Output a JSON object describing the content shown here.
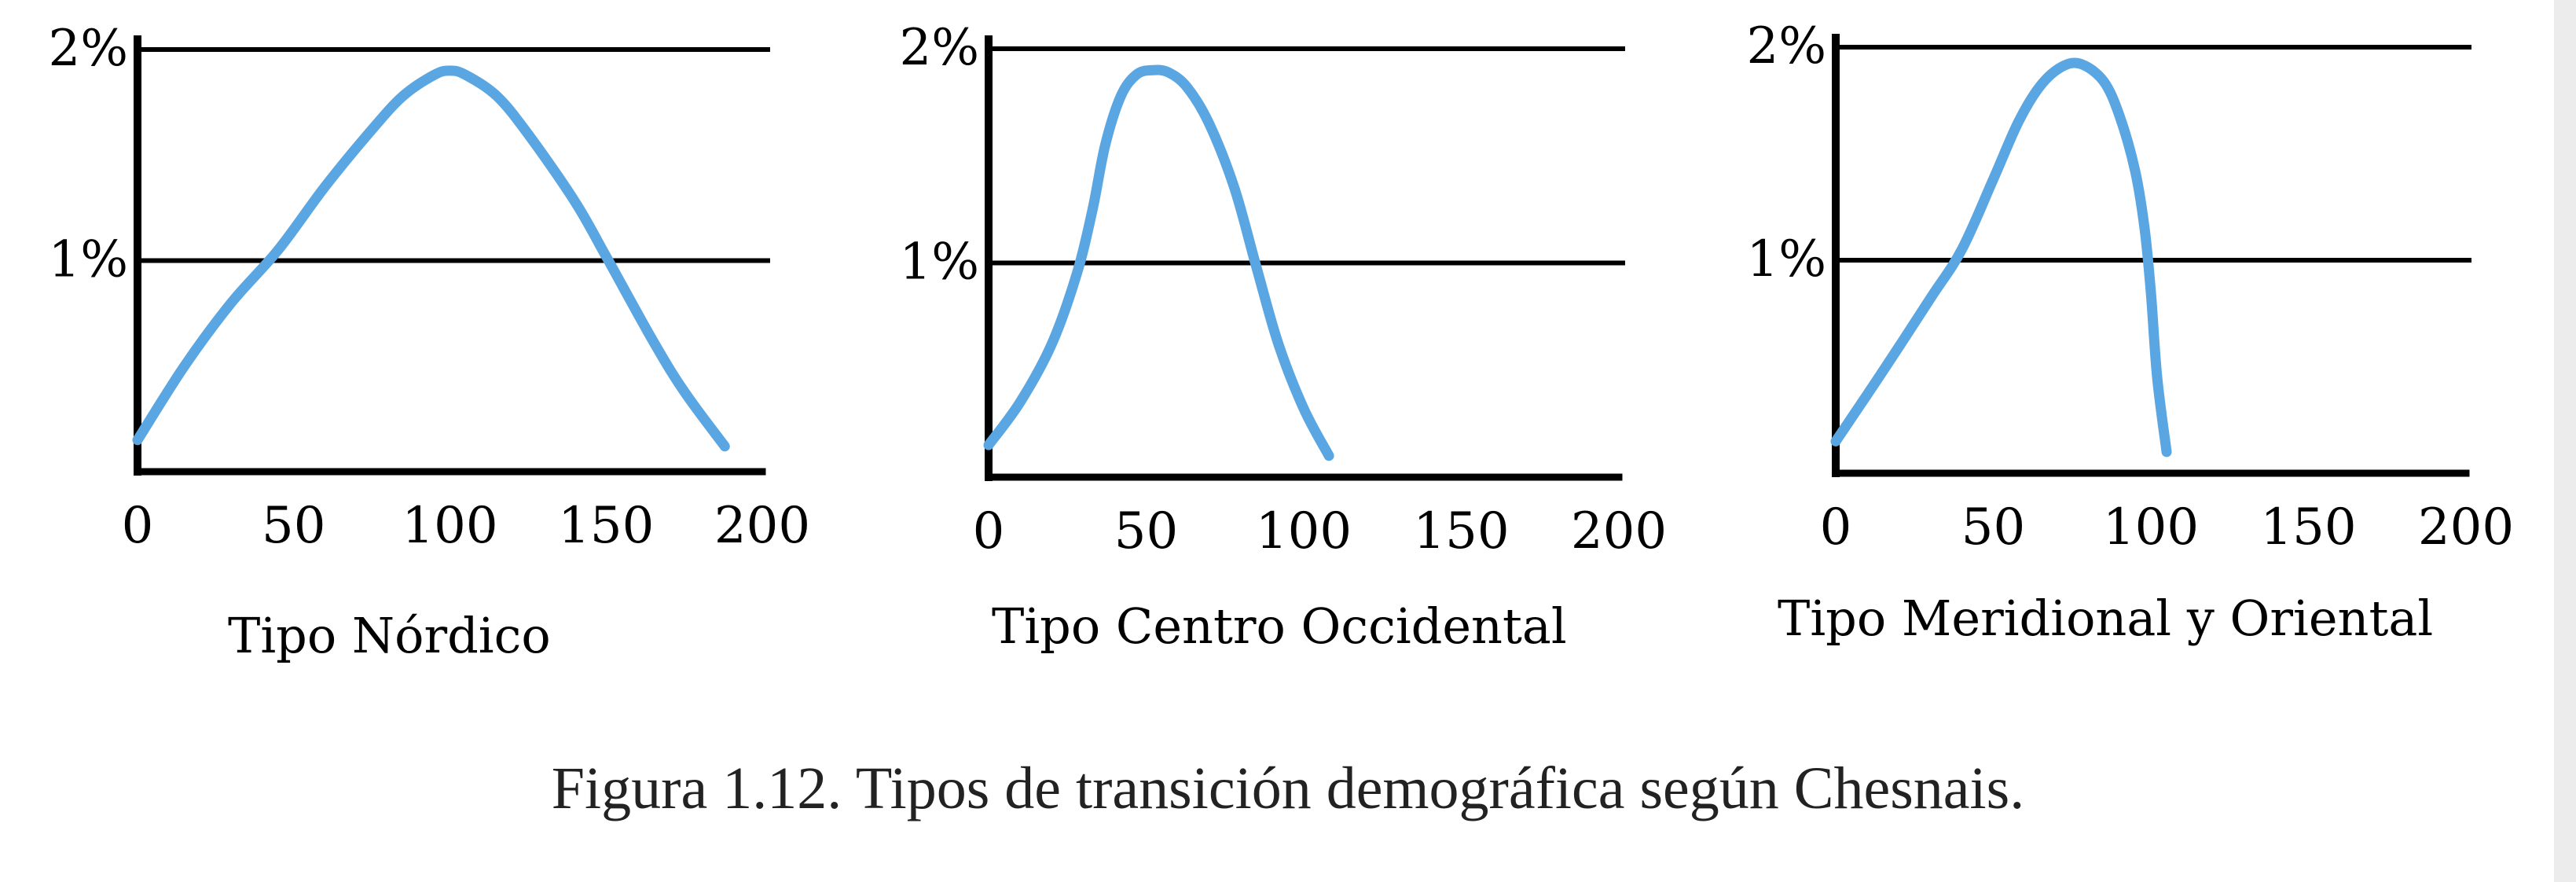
{
  "caption": "Figura 1.12.  Tipos de transición demográfica según Chesnais.",
  "colors": {
    "curve": "#5aa6e2",
    "axis": "#000000"
  },
  "chart_data": [
    {
      "type": "line",
      "title": "Tipo Nórdico",
      "xlim": [
        0,
        200
      ],
      "ylim": [
        0,
        2.5
      ],
      "xticks": [
        0,
        50,
        100,
        150,
        200
      ],
      "xtick_labels": [
        "0",
        "50",
        "100",
        "150",
        "200"
      ],
      "yticks": [
        1,
        2
      ],
      "ytick_labels": [
        "1%",
        "2%"
      ],
      "gridlines_y": [
        1,
        2
      ],
      "series": [
        {
          "x": [
            0,
            15,
            30,
            45,
            60,
            75,
            85,
            95,
            100,
            105,
            115,
            125,
            140,
            150,
            165,
            175,
            188
          ],
          "y": [
            0.15,
            0.5,
            0.8,
            1.05,
            1.35,
            1.62,
            1.78,
            1.88,
            1.9,
            1.88,
            1.78,
            1.6,
            1.28,
            1.02,
            0.62,
            0.38,
            0.12
          ]
        }
      ]
    },
    {
      "type": "line",
      "title": "Tipo Centro Occidental",
      "xlim": [
        0,
        200
      ],
      "ylim": [
        0,
        2.5
      ],
      "xticks": [
        0,
        50,
        100,
        150,
        200
      ],
      "xtick_labels": [
        "0",
        "50",
        "100",
        "150",
        "200"
      ],
      "yticks": [
        1,
        2
      ],
      "ytick_labels": [
        "1%",
        "2%"
      ],
      "gridlines_y": [
        1,
        2
      ],
      "series": [
        {
          "x": [
            0,
            10,
            20,
            28,
            33,
            37,
            42,
            47,
            52,
            57,
            63,
            70,
            78,
            85,
            92,
            100,
            108
          ],
          "y": [
            0.15,
            0.35,
            0.62,
            0.95,
            1.25,
            1.55,
            1.78,
            1.88,
            1.9,
            1.89,
            1.82,
            1.65,
            1.35,
            0.98,
            0.62,
            0.32,
            0.1
          ]
        }
      ]
    },
    {
      "type": "line",
      "title": "Tipo Meridional y Oriental",
      "xlim": [
        0,
        200
      ],
      "ylim": [
        0,
        2.5
      ],
      "xticks": [
        0,
        50,
        100,
        150,
        200
      ],
      "xtick_labels": [
        "0",
        "50",
        "100",
        "150",
        "200"
      ],
      "yticks": [
        1,
        2
      ],
      "ytick_labels": [
        "1%",
        "2%"
      ],
      "gridlines_y": [
        1,
        2
      ],
      "series": [
        {
          "x": [
            0,
            15,
            30,
            40,
            50,
            58,
            65,
            72,
            78,
            85,
            90,
            95,
            98,
            100,
            102,
            105
          ],
          "y": [
            0.15,
            0.48,
            0.82,
            1.05,
            1.38,
            1.65,
            1.82,
            1.91,
            1.92,
            1.84,
            1.68,
            1.42,
            1.15,
            0.85,
            0.45,
            0.1
          ]
        }
      ]
    }
  ]
}
